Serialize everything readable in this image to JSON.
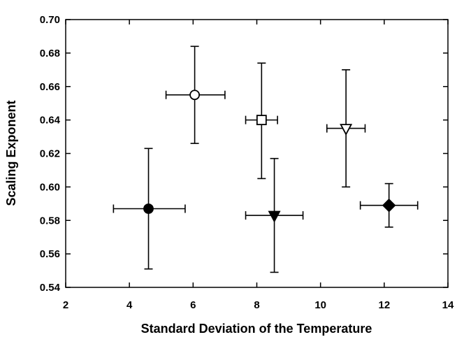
{
  "chart_data": {
    "type": "scatter",
    "title": "",
    "xlabel": "Standard Deviation of the Temperature",
    "ylabel": "Scaling Exponent",
    "xlim": [
      2,
      14
    ],
    "ylim": [
      0.54,
      0.7
    ],
    "x_ticks": [
      "2",
      "4",
      "6",
      "8",
      "10",
      "12",
      "14"
    ],
    "y_ticks": [
      "0.54",
      "0.56",
      "0.58",
      "0.60",
      "0.62",
      "0.64",
      "0.66",
      "0.68",
      "0.70"
    ],
    "grid": false,
    "legend": "none",
    "points": [
      {
        "marker": "circle",
        "filled": false,
        "x": 6.05,
        "y": 0.655,
        "xerr": [
          5.15,
          7.0
        ],
        "yerr": [
          0.626,
          0.684
        ]
      },
      {
        "marker": "square",
        "filled": false,
        "x": 8.15,
        "y": 0.64,
        "xerr": [
          7.65,
          8.65
        ],
        "yerr": [
          0.605,
          0.674
        ]
      },
      {
        "marker": "triangle-down",
        "filled": false,
        "x": 10.8,
        "y": 0.635,
        "xerr": [
          10.2,
          11.4
        ],
        "yerr": [
          0.6,
          0.67
        ]
      },
      {
        "marker": "circle",
        "filled": true,
        "x": 4.6,
        "y": 0.587,
        "xerr": [
          3.5,
          5.75
        ],
        "yerr": [
          0.551,
          0.623
        ]
      },
      {
        "marker": "triangle-down",
        "filled": true,
        "x": 8.55,
        "y": 0.583,
        "xerr": [
          7.65,
          9.45
        ],
        "yerr": [
          0.549,
          0.617
        ]
      },
      {
        "marker": "diamond",
        "filled": true,
        "x": 12.15,
        "y": 0.589,
        "xerr": [
          11.25,
          13.05
        ],
        "yerr": [
          0.576,
          0.602
        ]
      }
    ]
  }
}
